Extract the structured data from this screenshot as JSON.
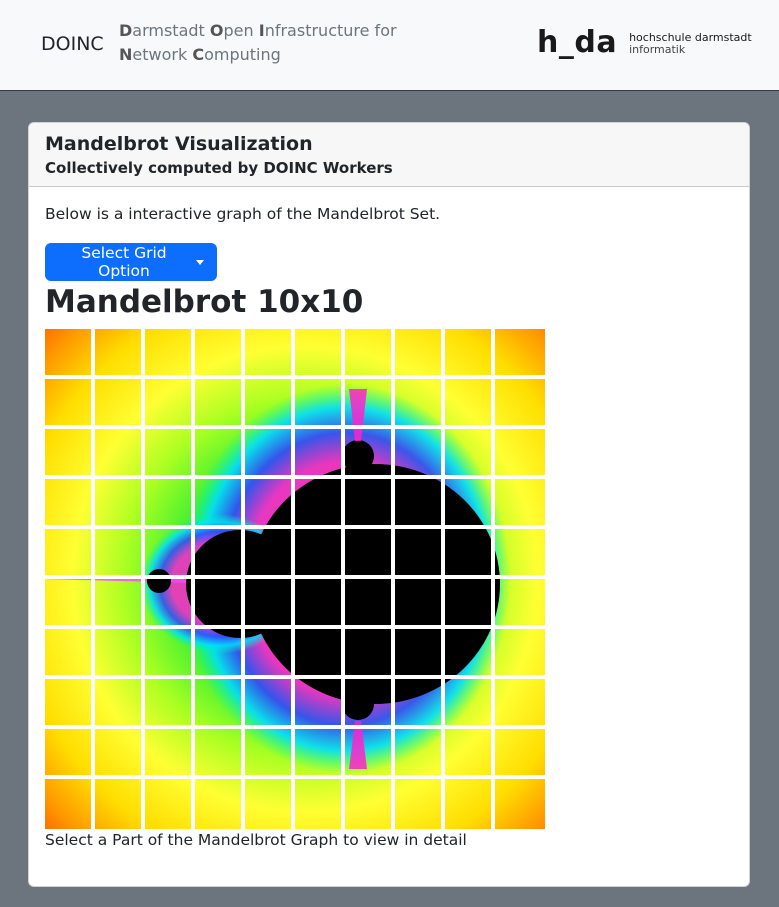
{
  "navbar": {
    "brand": "DOINC",
    "tagline": [
      {
        "cap": "D",
        "rest": "armstadt "
      },
      {
        "cap": "O",
        "rest": "pen "
      },
      {
        "cap": "I",
        "rest": "nfrastructure for"
      },
      {
        "cap": "N",
        "rest": "etwork "
      },
      {
        "cap": "C",
        "rest": "omputing"
      }
    ],
    "logo_mark": "h_da",
    "logo_line1": "hochschule darmstadt",
    "logo_line2": "informatik"
  },
  "card": {
    "title": "Mandelbrot Visualization",
    "subtitle": "Collectively computed by DOINC Workers",
    "intro": "Below is a interactive graph of the Mandelbrot Set.",
    "dropdown_label": "Select Grid Option",
    "heading": "Mandelbrot 10x10",
    "caption": "Select a Part of the Mandelbrot Graph to view in detail",
    "grid": {
      "rows": 10,
      "cols": 10
    }
  }
}
